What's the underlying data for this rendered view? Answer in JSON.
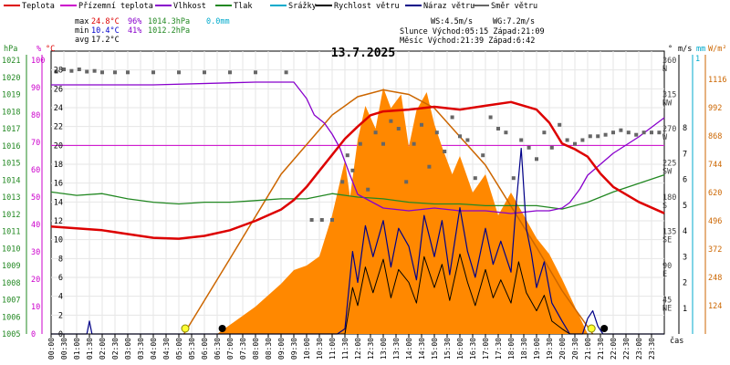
{
  "chart_data": {
    "type": "line",
    "title": "13.7.2025",
    "xlabel": "čas",
    "legend": [
      {
        "name": "Teplota",
        "color": "#dd0000"
      },
      {
        "name": "Přízemní teplota",
        "color": "#cc00cc"
      },
      {
        "name": "Vlhkost",
        "color": "#8800cc"
      },
      {
        "name": "Tlak",
        "color": "#228822"
      },
      {
        "name": "Srážky",
        "color": "#00aacc"
      },
      {
        "name": "Rychlost větru",
        "color": "#000000"
      },
      {
        "name": "Náraz větru",
        "color": "#000088"
      },
      {
        "name": "Směr větru",
        "color": "#666666"
      }
    ],
    "stats": {
      "max": {
        "label": "max",
        "temp": "24.8°C",
        "hum": "96%",
        "press": "1014.3hPa",
        "rain": "0.0mm"
      },
      "min": {
        "label": "min",
        "temp": "10.4°C",
        "hum": "41%",
        "press": "1012.2hPa"
      },
      "avg": {
        "label": "avg",
        "temp": "17.2°C"
      },
      "wind": "WS:4.5m/s",
      "gust": "WG:7.2m/s",
      "sun": "Slunce Východ:05:15  Západ:21:09",
      "moon": "Měsíc  Východ:21:39  Západ:6:42"
    },
    "axes": {
      "hpa": {
        "label": "hPa",
        "ticks": [
          "1021",
          "1020",
          "1019",
          "1018",
          "1017",
          "1016",
          "1015",
          "1014",
          "1013",
          "1012",
          "1011",
          "1010",
          "1009",
          "1008",
          "1007",
          "1006",
          "1005"
        ],
        "color": "#228822"
      },
      "pct": {
        "label": "%",
        "ticks": [
          "100",
          "90",
          "80",
          "70",
          "60",
          "50",
          "40",
          "30",
          "20",
          "10",
          "0"
        ],
        "color": "#cc00cc"
      },
      "temp": {
        "label": "°C",
        "ticks": [
          "28",
          "26",
          "24",
          "22",
          "20",
          "18",
          "16",
          "14",
          "12",
          "10",
          "8",
          "6",
          "4",
          "2",
          "0"
        ],
        "range": [
          0,
          30
        ],
        "color": "#dd0000"
      },
      "dir": {
        "label": "°",
        "ticks": [
          {
            "deg": "360",
            "name": "N"
          },
          {
            "deg": "315",
            "name": "NW"
          },
          {
            "deg": "270",
            "name": "W"
          },
          {
            "deg": "225",
            "name": "SW"
          },
          {
            "deg": "180",
            "name": "S"
          },
          {
            "deg": "135",
            "name": "SE"
          },
          {
            "deg": "90",
            "name": "E"
          },
          {
            "deg": "45",
            "name": "NE"
          }
        ],
        "color": "#444444"
      },
      "ms": {
        "label": "m/s",
        "ticks": [
          "8",
          "7",
          "6",
          "5",
          "4",
          "3",
          "2",
          "1"
        ],
        "color": "#000000"
      },
      "mm": {
        "label": "mm",
        "ticks": [
          "1"
        ],
        "color": "#00aacc"
      },
      "wm2": {
        "label": "W/m²",
        "ticks": [
          "1116",
          "992",
          "868",
          "744",
          "620",
          "496",
          "372",
          "248",
          "124"
        ],
        "range": [
          0,
          1240
        ],
        "color": "#cc6600"
      }
    },
    "x_ticks": [
      "00:00",
      "00:30",
      "01:00",
      "01:30",
      "02:00",
      "02:30",
      "03:00",
      "03:30",
      "04:00",
      "04:30",
      "05:00",
      "05:30",
      "06:00",
      "06:30",
      "07:00",
      "07:30",
      "08:00",
      "08:30",
      "09:00",
      "09:30",
      "10:00",
      "10:30",
      "11:00",
      "11:30",
      "12:00",
      "12:30",
      "13:00",
      "13:30",
      "14:00",
      "14:30",
      "15:00",
      "15:30",
      "16:00",
      "16:30",
      "17:00",
      "17:30",
      "18:00",
      "18:30",
      "19:00",
      "19:30",
      "20:00",
      "20:30",
      "21:00",
      "21:30",
      "22:00",
      "22:30",
      "23:00",
      "23:30"
    ],
    "series": [
      {
        "name": "Teplota",
        "unit": "°C",
        "x_hours": [
          0,
          1,
          2,
          3,
          4,
          5,
          6,
          7,
          8,
          9,
          9.5,
          10,
          10.5,
          11,
          11.5,
          12,
          12.5,
          13,
          14,
          15,
          16,
          17,
          18,
          19,
          19.5,
          20,
          20.5,
          21,
          21.5,
          22,
          23,
          24
        ],
        "values": [
          11.4,
          11.2,
          11.0,
          10.6,
          10.2,
          10.1,
          10.4,
          11.0,
          12.0,
          13.2,
          14.2,
          15.6,
          17.3,
          19.0,
          20.7,
          22.0,
          23.2,
          23.6,
          23.8,
          24.1,
          23.8,
          24.2,
          24.6,
          23.8,
          22.4,
          20.2,
          19.6,
          18.8,
          17.0,
          15.6,
          14.0,
          12.8
        ]
      },
      {
        "name": "Vlhkost",
        "unit": "%",
        "x_hours": [
          0,
          4,
          8,
          9.5,
          10,
          10.3,
          10.7,
          11,
          11.3,
          11.7,
          12,
          13,
          14,
          15,
          16,
          17,
          18,
          19,
          19.5,
          20,
          20.3,
          20.7,
          21,
          21.5,
          22,
          23,
          24
        ],
        "values": [
          91,
          91,
          92,
          92,
          86,
          80,
          77,
          73,
          68,
          58,
          51,
          46,
          45,
          46,
          45,
          45,
          44,
          45,
          45,
          46,
          48,
          53,
          58,
          62,
          66,
          72,
          79
        ]
      },
      {
        "name": "Tlak",
        "unit": "hPa",
        "x_hours": [
          0,
          1,
          2,
          3,
          4,
          5,
          6,
          7,
          8,
          9,
          10,
          11,
          12,
          13,
          14,
          15,
          16,
          17,
          18,
          19,
          20,
          21,
          22,
          23,
          24
        ],
        "values": [
          1013.3,
          1013.1,
          1013.2,
          1012.9,
          1012.7,
          1012.6,
          1012.7,
          1012.7,
          1012.8,
          1012.9,
          1012.9,
          1013.2,
          1013.0,
          1012.9,
          1012.7,
          1012.6,
          1012.6,
          1012.5,
          1012.5,
          1012.5,
          1012.3,
          1012.7,
          1013.3,
          1013.8,
          1014.3
        ]
      },
      {
        "name": "Přízemní teplota",
        "unit": "°C",
        "x_hours": [
          0,
          24
        ],
        "values": [
          20,
          20
        ]
      },
      {
        "name": "Solar",
        "unit": "W/m²",
        "x_hours": [
          6.5,
          8,
          9,
          9.5,
          10,
          10.5,
          11,
          11.5,
          11.7,
          12,
          12.3,
          12.7,
          13,
          13.3,
          13.7,
          14,
          14.3,
          14.7,
          15,
          15.3,
          15.7,
          16,
          16.5,
          17,
          17.5,
          18,
          18.5,
          19,
          19.5,
          20,
          20.5,
          21
        ],
        "values": [
          0,
          120,
          220,
          280,
          300,
          340,
          520,
          760,
          600,
          850,
          1000,
          900,
          1080,
          990,
          1050,
          820,
          980,
          1060,
          920,
          820,
          700,
          780,
          620,
          700,
          520,
          620,
          520,
          420,
          350,
          240,
          120,
          0
        ]
      },
      {
        "name": "Solar max",
        "unit": "W/m²",
        "x_hours": [
          5.2,
          7,
          9,
          11,
          12,
          13,
          13.5,
          14,
          15,
          17,
          19,
          20,
          21.2
        ],
        "values": [
          0,
          330,
          700,
          960,
          1040,
          1070,
          1060,
          1050,
          990,
          740,
          380,
          190,
          0
        ]
      },
      {
        "name": "Náraz větru",
        "unit": "m/s",
        "x_hours": [
          0,
          1.4,
          1.5,
          1.6,
          11.2,
          11.5,
          11.8,
          12,
          12.3,
          12.6,
          13,
          13.3,
          13.6,
          14,
          14.3,
          14.6,
          15,
          15.3,
          15.6,
          16,
          16.3,
          16.6,
          17,
          17.3,
          17.6,
          18,
          18.2,
          18.4,
          18.6,
          18.8,
          19,
          19.3,
          19.6,
          20,
          20.3,
          20.6,
          20.8,
          21,
          21.2,
          21.4,
          21.6,
          21.8,
          22,
          24
        ],
        "values": [
          0,
          0,
          0.5,
          0,
          0,
          0.2,
          3.2,
          2.0,
          4.2,
          3.0,
          4.4,
          2.6,
          4.1,
          3.4,
          2.1,
          4.6,
          3.0,
          4.4,
          2.3,
          4.9,
          3.2,
          2.2,
          4.1,
          2.7,
          3.6,
          2.4,
          5.0,
          7.2,
          4.1,
          3.1,
          1.8,
          2.8,
          1.2,
          0.5,
          0,
          0,
          0,
          0.6,
          0.9,
          0.3,
          0,
          0,
          0,
          0
        ]
      },
      {
        "name": "Rychlost větru",
        "unit": "m/s",
        "x_hours": [
          0,
          11.2,
          11.5,
          11.8,
          12,
          12.3,
          12.6,
          13,
          13.3,
          13.6,
          14,
          14.3,
          14.6,
          15,
          15.3,
          15.6,
          16,
          16.3,
          16.6,
          17,
          17.3,
          17.6,
          18,
          18.3,
          18.6,
          19,
          19.3,
          19.6,
          20,
          20.3,
          21,
          24
        ],
        "values": [
          0,
          0,
          0,
          1.8,
          1.1,
          2.6,
          1.6,
          2.9,
          1.4,
          2.5,
          2.0,
          1.2,
          3.0,
          1.8,
          2.7,
          1.3,
          3.1,
          2.0,
          1.1,
          2.5,
          1.4,
          2.1,
          1.2,
          2.8,
          1.6,
          0.9,
          1.5,
          0.5,
          0.2,
          0,
          0,
          0
        ]
      },
      {
        "name": "Směr větru",
        "unit": "°",
        "x_hours": [
          0.2,
          0.5,
          0.8,
          1.1,
          1.4,
          1.7,
          2.0,
          2.5,
          3,
          4,
          5,
          6,
          7,
          8,
          9.2,
          10.2,
          10.6,
          11.0,
          11.4,
          11.6,
          11.8,
          12.1,
          12.4,
          12.7,
          13.0,
          13.3,
          13.6,
          13.9,
          14.2,
          14.5,
          14.8,
          15.1,
          15.4,
          15.7,
          16.0,
          16.3,
          16.6,
          16.9,
          17.2,
          17.5,
          17.8,
          18.1,
          18.4,
          18.7,
          19.0,
          19.3,
          19.6,
          19.9,
          20.2,
          20.5,
          20.8,
          21.1,
          21.4,
          21.7,
          22.0,
          22.3,
          22.6,
          22.9,
          23.2,
          23.5,
          23.8
        ],
        "values": [
          345,
          348,
          346,
          348,
          345,
          346,
          344,
          344,
          344,
          344,
          344,
          344,
          344,
          344,
          344,
          150,
          150,
          150,
          200,
          235,
          215,
          250,
          190,
          265,
          250,
          280,
          270,
          200,
          250,
          275,
          220,
          265,
          240,
          285,
          260,
          255,
          205,
          235,
          285,
          270,
          265,
          205,
          255,
          245,
          230,
          265,
          245,
          275,
          255,
          250,
          255,
          260,
          260,
          262,
          265,
          268,
          265,
          262,
          265,
          265,
          265
        ]
      }
    ],
    "sun_markers": [
      {
        "label": "sunrise",
        "x_hour": 5.25,
        "color": "#ffff33"
      },
      {
        "label": "sunset",
        "x_hour": 21.15,
        "color": "#ffff33"
      }
    ],
    "moon_markers": [
      {
        "label": "moonset",
        "x_hour": 6.7,
        "color": "#000000"
      },
      {
        "label": "moonrise",
        "x_hour": 21.65,
        "color": "#000000"
      }
    ]
  }
}
